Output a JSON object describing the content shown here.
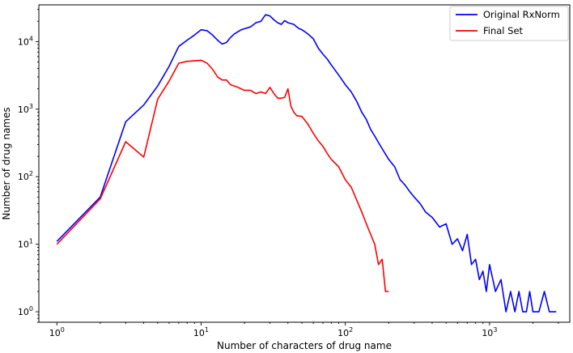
{
  "chart_data": {
    "type": "line",
    "title": "",
    "xlabel": "Number of characters of drug name",
    "ylabel": "Number of drug names",
    "xscale": "log",
    "yscale": "log",
    "xlim": [
      0.75,
      3600
    ],
    "ylim": [
      0.7,
      35000
    ],
    "grid": false,
    "legend_position": "top-right",
    "x_ticks": [
      {
        "value": 1,
        "base": "10",
        "exp": "0"
      },
      {
        "value": 10,
        "base": "10",
        "exp": "1"
      },
      {
        "value": 100,
        "base": "10",
        "exp": "2"
      },
      {
        "value": 1000,
        "base": "10",
        "exp": "3"
      }
    ],
    "y_ticks": [
      {
        "value": 1,
        "base": "10",
        "exp": "0"
      },
      {
        "value": 10,
        "base": "10",
        "exp": "1"
      },
      {
        "value": 100,
        "base": "10",
        "exp": "2"
      },
      {
        "value": 1000,
        "base": "10",
        "exp": "3"
      },
      {
        "value": 10000,
        "base": "10",
        "exp": "4"
      }
    ],
    "series": [
      {
        "name": "Original RxNorm",
        "color": "#0000ff",
        "x": [
          1,
          2,
          3,
          4,
          5,
          6,
          7,
          8,
          9,
          10,
          11,
          12,
          13,
          14,
          15,
          16,
          17,
          18,
          19,
          20,
          22,
          24,
          26,
          28,
          30,
          32,
          34,
          36,
          38,
          40,
          42,
          44,
          46,
          48,
          50,
          55,
          60,
          65,
          70,
          75,
          80,
          90,
          100,
          110,
          120,
          130,
          140,
          150,
          160,
          170,
          180,
          200,
          220,
          240,
          260,
          280,
          300,
          330,
          360,
          400,
          450,
          500,
          550,
          600,
          650,
          700,
          750,
          800,
          850,
          900,
          950,
          1000,
          1100,
          1200,
          1300,
          1400,
          1500,
          1600,
          1700,
          1800,
          1900,
          2000,
          2200,
          2400,
          2600,
          2800,
          2900
        ],
        "values": [
          11,
          50,
          650,
          1150,
          2200,
          4300,
          8500,
          10500,
          12500,
          15000,
          14500,
          12500,
          10500,
          9200,
          9700,
          11500,
          13000,
          14000,
          15000,
          15500,
          16500,
          19000,
          20000,
          25000,
          24000,
          21000,
          19000,
          18000,
          20500,
          19000,
          18500,
          18000,
          16500,
          15500,
          15000,
          13000,
          11000,
          8000,
          6500,
          5500,
          4500,
          3200,
          2300,
          1800,
          1300,
          900,
          700,
          500,
          400,
          320,
          260,
          180,
          140,
          90,
          75,
          60,
          50,
          40,
          30,
          25,
          18,
          20,
          10,
          12,
          8,
          14,
          5,
          6,
          3,
          4,
          2,
          5,
          2,
          3,
          1,
          2,
          1,
          2,
          1,
          1,
          2,
          1,
          1,
          2,
          1,
          1,
          1
        ]
      },
      {
        "name": "Final Set",
        "color": "#ff0000",
        "x": [
          1,
          2,
          3,
          4,
          5,
          6,
          7,
          8,
          9,
          10,
          11,
          12,
          13,
          14,
          15,
          16,
          18,
          20,
          22,
          24,
          26,
          28,
          30,
          32,
          34,
          36,
          38,
          40,
          42,
          44,
          46,
          50,
          55,
          60,
          65,
          70,
          75,
          80,
          90,
          100,
          110,
          120,
          130,
          140,
          150,
          160,
          170,
          180,
          190,
          200
        ],
        "values": [
          10,
          47,
          330,
          195,
          1400,
          2600,
          4800,
          5100,
          5200,
          5300,
          4800,
          3900,
          3000,
          2700,
          2700,
          2300,
          2100,
          1900,
          1900,
          1700,
          1800,
          1700,
          2100,
          1700,
          1450,
          1450,
          1500,
          2000,
          1100,
          900,
          800,
          780,
          600,
          440,
          340,
          280,
          220,
          180,
          140,
          90,
          70,
          45,
          30,
          20,
          14,
          10,
          5,
          6,
          2,
          2
        ]
      }
    ]
  }
}
